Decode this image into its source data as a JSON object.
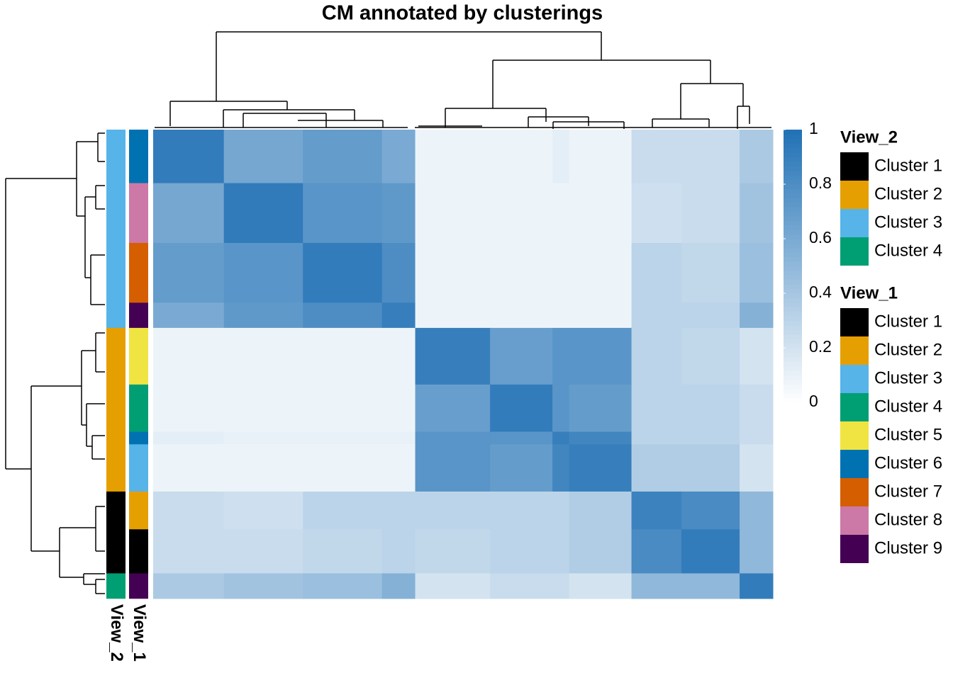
{
  "chart_data": {
    "type": "heatmap",
    "title": "CM annotated by clusterings",
    "sizes": [
      17,
      19,
      19,
      8,
      18,
      15,
      4,
      15,
      12,
      14,
      8
    ],
    "matrix": [
      [
        0.92,
        0.62,
        0.7,
        0.6,
        0.08,
        0.08,
        0.12,
        0.08,
        0.25,
        0.25,
        0.38
      ],
      [
        0.62,
        0.93,
        0.75,
        0.72,
        0.08,
        0.08,
        0.08,
        0.08,
        0.22,
        0.25,
        0.42
      ],
      [
        0.7,
        0.75,
        0.92,
        0.8,
        0.08,
        0.08,
        0.08,
        0.08,
        0.3,
        0.28,
        0.45
      ],
      [
        0.6,
        0.72,
        0.8,
        0.9,
        0.08,
        0.08,
        0.08,
        0.08,
        0.3,
        0.3,
        0.55
      ],
      [
        0.08,
        0.08,
        0.08,
        0.08,
        0.9,
        0.68,
        0.75,
        0.75,
        0.3,
        0.28,
        0.2
      ],
      [
        0.08,
        0.08,
        0.08,
        0.08,
        0.68,
        0.92,
        0.75,
        0.7,
        0.3,
        0.3,
        0.25
      ],
      [
        0.12,
        0.1,
        0.1,
        0.1,
        0.75,
        0.75,
        0.9,
        0.85,
        0.3,
        0.3,
        0.25
      ],
      [
        0.08,
        0.08,
        0.08,
        0.08,
        0.75,
        0.7,
        0.85,
        0.9,
        0.35,
        0.35,
        0.2
      ],
      [
        0.25,
        0.22,
        0.3,
        0.3,
        0.3,
        0.3,
        0.3,
        0.35,
        0.88,
        0.82,
        0.5
      ],
      [
        0.25,
        0.25,
        0.28,
        0.3,
        0.28,
        0.3,
        0.3,
        0.35,
        0.82,
        0.92,
        0.5
      ],
      [
        0.38,
        0.42,
        0.45,
        0.55,
        0.2,
        0.25,
        0.25,
        0.2,
        0.5,
        0.5,
        0.92
      ]
    ],
    "colorbar": {
      "lim": [
        0,
        1
      ],
      "ticks": [
        0,
        0.2,
        0.4,
        0.6,
        0.8,
        1
      ],
      "colors": [
        "#ffffff",
        "#2171b5"
      ]
    },
    "row_annotations": [
      {
        "name": "View_2",
        "values": [
          2,
          2,
          2,
          2,
          1,
          1,
          1,
          1,
          0,
          0,
          3
        ]
      },
      {
        "name": "View_1",
        "values": [
          5,
          7,
          6,
          8,
          4,
          3,
          5,
          2,
          1,
          0,
          8
        ]
      }
    ],
    "legends": [
      {
        "title": "View_2",
        "labels": [
          "Cluster 1",
          "Cluster 2",
          "Cluster 3",
          "Cluster 4"
        ],
        "colors": [
          "#000000",
          "#E69F00",
          "#56B4E9",
          "#009E73"
        ]
      },
      {
        "title": "View_1",
        "labels": [
          "Cluster 1",
          "Cluster 2",
          "Cluster 3",
          "Cluster 4",
          "Cluster 5",
          "Cluster 6",
          "Cluster 7",
          "Cluster 8",
          "Cluster 9"
        ],
        "colors": [
          "#000000",
          "#E69F00",
          "#56B4E9",
          "#009E73",
          "#F0E442",
          "#0072B2",
          "#D55E00",
          "#CC79A7",
          "#440154"
        ]
      }
    ]
  }
}
